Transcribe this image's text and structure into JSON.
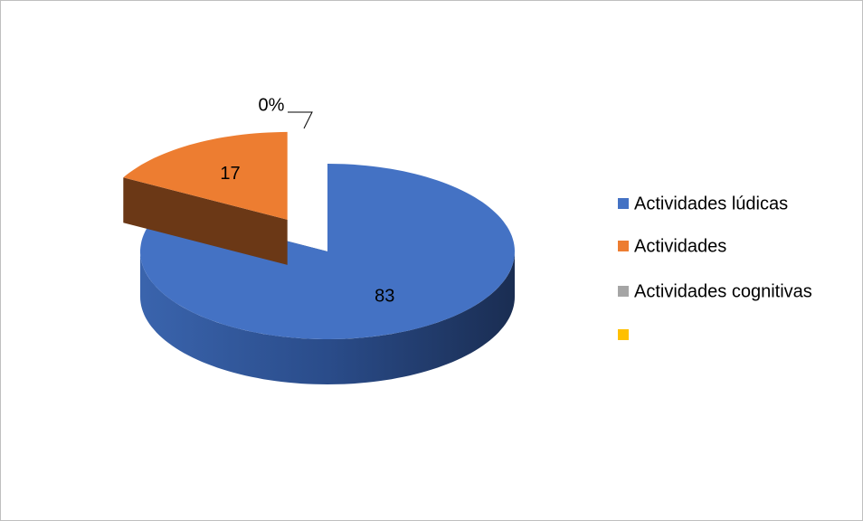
{
  "chart_data": {
    "type": "pie",
    "categories": [
      "Actividades lúdicas",
      "Actividades",
      "Actividades cognitivas",
      null
    ],
    "values": [
      83,
      17,
      0,
      0
    ],
    "value_labels": [
      "83",
      "17",
      "0%",
      null
    ],
    "colors": [
      "#4472c4",
      "#ed7d31",
      "#a5a5a5",
      "#ffc000"
    ],
    "legend": "right"
  }
}
